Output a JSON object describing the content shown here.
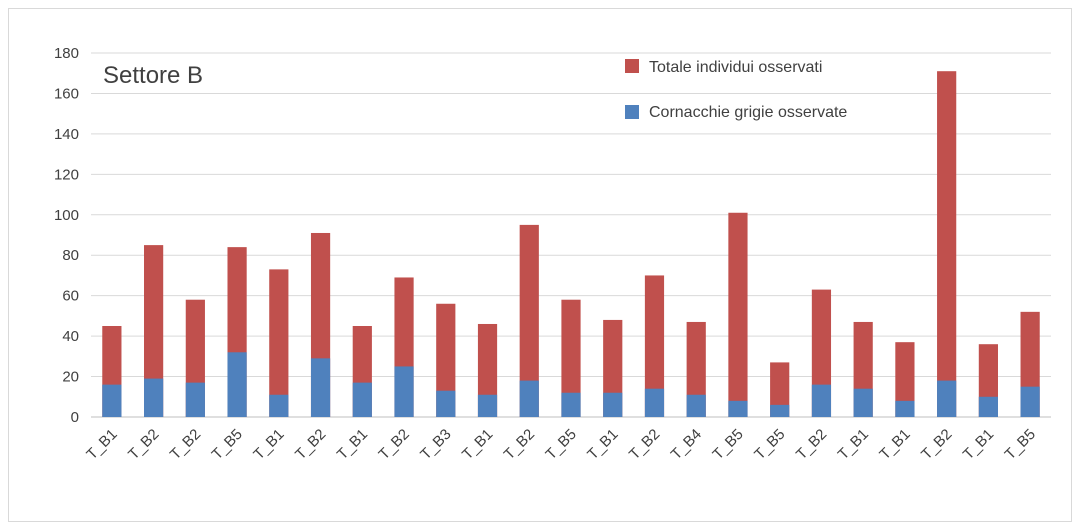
{
  "chart_data": {
    "type": "bar",
    "stacked": true,
    "title": "Settore B",
    "categories": [
      "T_B1",
      "T_B2",
      "T_B2",
      "T_B5",
      "T_B1",
      "T_B2",
      "T_B1",
      "T_B2",
      "T_B3",
      "T_B1",
      "T_B2",
      "T_B5",
      "T_B1",
      "T_B2",
      "T_B4",
      "T_B5",
      "T_B5",
      "T_B2",
      "T_B1",
      "T_B1",
      "T_B2",
      "T_B1",
      "T_B5"
    ],
    "series": [
      {
        "name": "Cornacchie grigie osservate",
        "color": "#4f81bd",
        "values": [
          16,
          19,
          17,
          32,
          11,
          29,
          17,
          25,
          13,
          11,
          18,
          12,
          12,
          14,
          11,
          8,
          6,
          16,
          14,
          8,
          18,
          10,
          15
        ]
      },
      {
        "name": "Totale individui osservati",
        "color": "#c0504d",
        "values": [
          45,
          85,
          58,
          84,
          73,
          91,
          45,
          69,
          56,
          46,
          95,
          58,
          48,
          70,
          47,
          101,
          27,
          63,
          47,
          37,
          171,
          36,
          52
        ]
      }
    ],
    "series_note_total_is_overall_height": true,
    "ylim": [
      0,
      180
    ],
    "yticks": [
      "0",
      "20",
      "40",
      "60",
      "80",
      "100",
      "120",
      "140",
      "160",
      "180"
    ],
    "grid": true,
    "legend_position": "top-right",
    "xlabel": "",
    "ylabel": ""
  }
}
